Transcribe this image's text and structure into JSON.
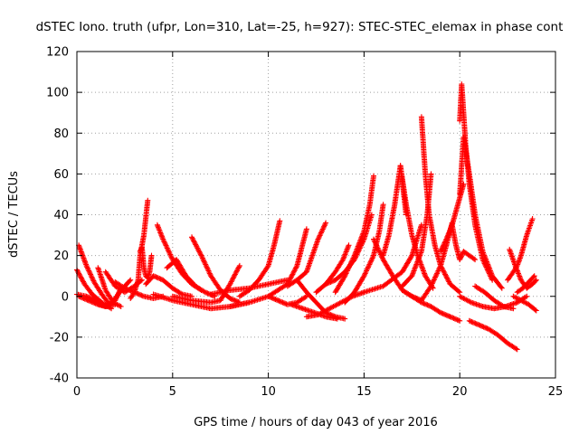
{
  "chart_data": {
    "type": "scatter",
    "title": "dSTEC Iono. truth (ufpr, Lon=310, Lat=-25, h=927): STEC-STEC_elemax in phase cont",
    "xlabel": "GPS time / hours of day 043 of year 2016",
    "ylabel": "dSTEC  / TECUs",
    "xlim": [
      0,
      25
    ],
    "ylim": [
      -40,
      120
    ],
    "xticks": [
      0,
      5,
      10,
      15,
      20,
      25
    ],
    "yticks": [
      -40,
      -20,
      0,
      20,
      40,
      60,
      80,
      100,
      120
    ],
    "grid": true,
    "marker": "+",
    "color": "#ff0000",
    "series": [
      {
        "x": [
          0.0,
          0.5,
          1.0,
          1.5,
          2.0
        ],
        "y": [
          1,
          0,
          -2,
          -5,
          -4
        ]
      },
      {
        "x": [
          0.0,
          0.4,
          0.8,
          1.3,
          1.8
        ],
        "y": [
          13,
          6,
          1,
          -3,
          -6
        ]
      },
      {
        "x": [
          0.1,
          0.5,
          0.9,
          1.3,
          1.7
        ],
        "y": [
          25,
          15,
          7,
          1,
          -4
        ]
      },
      {
        "x": [
          0.1,
          0.6,
          1.1,
          1.5,
          2.0,
          2.3
        ],
        "y": [
          0,
          -2,
          -4,
          -5,
          -2,
          4
        ]
      },
      {
        "x": [
          0.8,
          1.2,
          1.6,
          2.0,
          2.4,
          2.8
        ],
        "y": [
          -2,
          -4,
          -5,
          -1,
          4,
          8
        ]
      },
      {
        "x": [
          1.1,
          1.5,
          1.9,
          2.3
        ],
        "y": [
          14,
          3,
          -3,
          -5
        ]
      },
      {
        "x": [
          1.5,
          2.0,
          2.5,
          3.0,
          3.4
        ],
        "y": [
          12,
          5,
          2,
          5,
          8
        ]
      },
      {
        "x": [
          2.0,
          2.5,
          3.0,
          3.5,
          4.0,
          4.5
        ],
        "y": [
          7,
          4,
          2,
          0,
          -1,
          0
        ]
      },
      {
        "x": [
          2.8,
          3.0,
          3.1,
          3.2,
          3.3,
          3.5,
          3.7
        ],
        "y": [
          -1,
          2,
          5,
          8,
          20,
          30,
          47
        ]
      },
      {
        "x": [
          3.3,
          3.4,
          3.5,
          3.6,
          3.7,
          3.8,
          3.9
        ],
        "y": [
          22,
          24,
          14,
          10,
          9,
          12,
          20
        ]
      },
      {
        "x": [
          3.6,
          4.0,
          4.5,
          5.0,
          5.5,
          6.0
        ],
        "y": [
          6,
          10,
          8,
          4,
          1,
          0
        ]
      },
      {
        "x": [
          4.2,
          4.5,
          5.0,
          5.5,
          6.0,
          6.5
        ],
        "y": [
          35,
          28,
          18,
          11,
          6,
          3
        ]
      },
      {
        "x": [
          4.7,
          5.2,
          5.7,
          6.2,
          6.7,
          7.2
        ],
        "y": [
          14,
          18,
          10,
          5,
          2,
          0
        ]
      },
      {
        "x": [
          6.0,
          6.5,
          7.0,
          7.5,
          8.0,
          8.5
        ],
        "y": [
          29,
          20,
          10,
          3,
          -1,
          -3
        ]
      },
      {
        "x": [
          4.0,
          5.0,
          6.0,
          7.0,
          8.0,
          9.0
        ],
        "y": [
          1,
          -2,
          -4,
          -6,
          -5,
          -3
        ]
      },
      {
        "x": [
          5.0,
          6.0,
          7.0,
          7.5,
          8.0,
          8.5
        ],
        "y": [
          0,
          -2,
          -3,
          -2,
          6,
          15
        ]
      },
      {
        "x": [
          7.0,
          8.0,
          9.0,
          10.0,
          11.0
        ],
        "y": [
          1,
          3,
          4,
          6,
          8
        ]
      },
      {
        "x": [
          8.5,
          9.0,
          9.5,
          10.0,
          10.3,
          10.6
        ],
        "y": [
          0,
          3,
          8,
          15,
          25,
          37
        ]
      },
      {
        "x": [
          8.0,
          9.0,
          10.0,
          11.0,
          11.5,
          12.0
        ],
        "y": [
          -5,
          -3,
          0,
          6,
          15,
          33
        ]
      },
      {
        "x": [
          10.0,
          10.5,
          11.0,
          11.5,
          12.0
        ],
        "y": [
          0,
          -2,
          -4,
          -3,
          0
        ]
      },
      {
        "x": [
          11.0,
          11.5,
          12.0,
          12.3,
          12.6,
          13.0
        ],
        "y": [
          5,
          8,
          12,
          20,
          28,
          36
        ]
      },
      {
        "x": [
          11.5,
          12.0,
          12.5,
          13.0,
          13.5,
          14.0
        ],
        "y": [
          8,
          2,
          -3,
          -8,
          -10,
          -11
        ]
      },
      {
        "x": [
          11.2,
          11.8,
          12.4,
          13.0,
          13.6
        ],
        "y": [
          -4,
          -6,
          -8,
          -10,
          -11
        ]
      },
      {
        "x": [
          12.0,
          12.6,
          13.2,
          13.8,
          14.4,
          15.0
        ],
        "y": [
          -10,
          -9,
          -6,
          -3,
          0,
          2
        ]
      },
      {
        "x": [
          12.5,
          13.0,
          13.5,
          13.9,
          14.2
        ],
        "y": [
          2,
          6,
          12,
          18,
          25
        ]
      },
      {
        "x": [
          13.0,
          13.5,
          14.0,
          14.5,
          15.0,
          15.4
        ],
        "y": [
          6,
          8,
          12,
          18,
          28,
          40
        ]
      },
      {
        "x": [
          13.5,
          14.0,
          14.5,
          15.0,
          15.3,
          15.5
        ],
        "y": [
          2,
          10,
          20,
          32,
          45,
          59
        ]
      },
      {
        "x": [
          14.0,
          14.5,
          15.0,
          15.5,
          15.8,
          16.0
        ],
        "y": [
          -3,
          2,
          10,
          20,
          32,
          45
        ]
      },
      {
        "x": [
          15.5,
          16.0,
          16.5,
          17.0,
          17.5,
          18.0
        ],
        "y": [
          28,
          18,
          10,
          3,
          0,
          -2
        ]
      },
      {
        "x": [
          16.0,
          16.3,
          16.6,
          16.9,
          17.2
        ],
        "y": [
          20,
          30,
          45,
          64,
          40
        ]
      },
      {
        "x": [
          16.9,
          17.2,
          17.5,
          17.8,
          18.2,
          18.6
        ],
        "y": [
          64,
          45,
          30,
          20,
          10,
          4
        ]
      },
      {
        "x": [
          15.0,
          16.0,
          17.0,
          17.5,
          18.0
        ],
        "y": [
          2,
          5,
          12,
          20,
          35
        ]
      },
      {
        "x": [
          17.0,
          17.5,
          18.0,
          18.3,
          18.5
        ],
        "y": [
          5,
          10,
          22,
          40,
          60
        ]
      },
      {
        "x": [
          18.0,
          18.2,
          18.4,
          18.7,
          19.0,
          19.5,
          20.0
        ],
        "y": [
          88,
          60,
          40,
          25,
          15,
          6,
          2
        ]
      },
      {
        "x": [
          17.0,
          17.5,
          18.0,
          18.5,
          19.0,
          19.5,
          20.0
        ],
        "y": [
          3,
          0,
          -3,
          -5,
          -8,
          -10,
          -12
        ]
      },
      {
        "x": [
          18.0,
          18.5,
          19.0,
          19.3,
          19.6
        ],
        "y": [
          -2,
          5,
          15,
          25,
          36
        ]
      },
      {
        "x": [
          19.0,
          19.3,
          19.6,
          19.9,
          20.2
        ],
        "y": [
          22,
          28,
          35,
          45,
          55
        ]
      },
      {
        "x": [
          19.6,
          19.8,
          20.0,
          20.2,
          20.5,
          20.8
        ],
        "y": [
          35,
          25,
          18,
          22,
          20,
          18
        ]
      },
      {
        "x": [
          20.0,
          20.1,
          20.2,
          20.3,
          20.5,
          20.8,
          21.2,
          21.7
        ],
        "y": [
          86,
          104,
          90,
          75,
          55,
          35,
          18,
          8
        ]
      },
      {
        "x": [
          20.0,
          20.2,
          20.5,
          20.8,
          21.2,
          21.7,
          22.2
        ],
        "y": [
          50,
          78,
          60,
          40,
          22,
          10,
          4
        ]
      },
      {
        "x": [
          20.5,
          21.0,
          21.5,
          22.0,
          22.5,
          23.0
        ],
        "y": [
          -12,
          -14,
          -16,
          -19,
          -23,
          -26
        ]
      },
      {
        "x": [
          20.0,
          20.6,
          21.2,
          21.8,
          22.4,
          23.0,
          23.5
        ],
        "y": [
          0,
          -3,
          -5,
          -6,
          -5,
          -3,
          0
        ]
      },
      {
        "x": [
          20.8,
          21.3,
          21.8,
          22.3,
          22.8
        ],
        "y": [
          5,
          2,
          -2,
          -5,
          -6
        ]
      },
      {
        "x": [
          22.5,
          22.8,
          23.0,
          23.2,
          23.5,
          23.8
        ],
        "y": [
          8,
          12,
          15,
          20,
          30,
          38
        ]
      },
      {
        "x": [
          22.6,
          22.9,
          23.2,
          23.5,
          23.8,
          24.0
        ],
        "y": [
          23,
          15,
          8,
          4,
          6,
          8
        ]
      },
      {
        "x": [
          22.8,
          23.2,
          23.6,
          24.0
        ],
        "y": [
          0,
          -2,
          -4,
          -7
        ]
      },
      {
        "x": [
          23.0,
          23.3,
          23.6,
          23.9
        ],
        "y": [
          2,
          4,
          7,
          10
        ]
      }
    ]
  }
}
